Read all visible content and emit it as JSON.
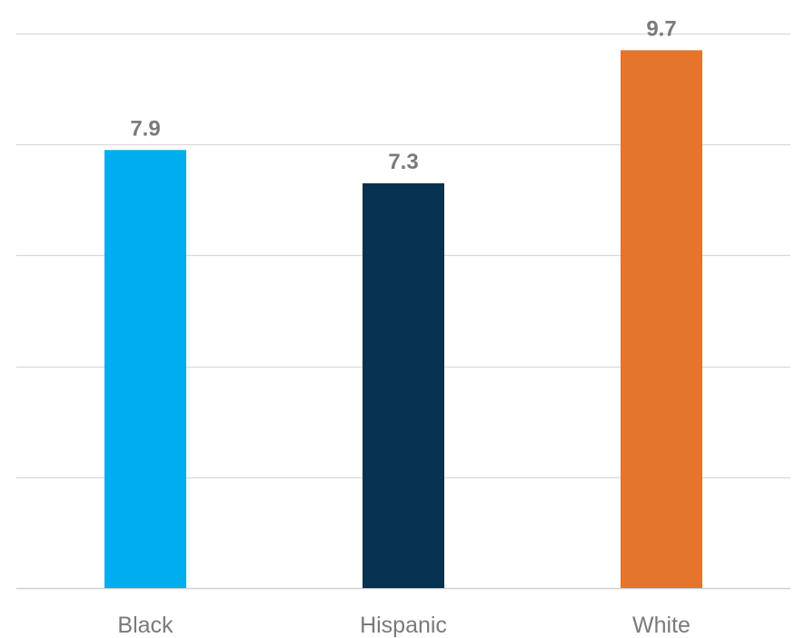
{
  "chart_data": {
    "type": "bar",
    "title": "",
    "xlabel": "",
    "ylabel": "",
    "categories": [
      "Black",
      "Hispanic",
      "White"
    ],
    "values": [
      7.9,
      7.3,
      9.7
    ],
    "value_labels": [
      "7.9",
      "7.3",
      "9.7"
    ],
    "colors": [
      "#00adee",
      "#06324f",
      "#e3752c"
    ],
    "label_color": "#7a7a7a",
    "gridline_color": "#d9d9d9",
    "ylim": [
      0,
      10
    ],
    "y_gridlines": [
      0,
      2,
      4,
      6,
      8,
      10
    ],
    "grid": true,
    "y_tick_labels_shown": false,
    "legend": "none"
  }
}
